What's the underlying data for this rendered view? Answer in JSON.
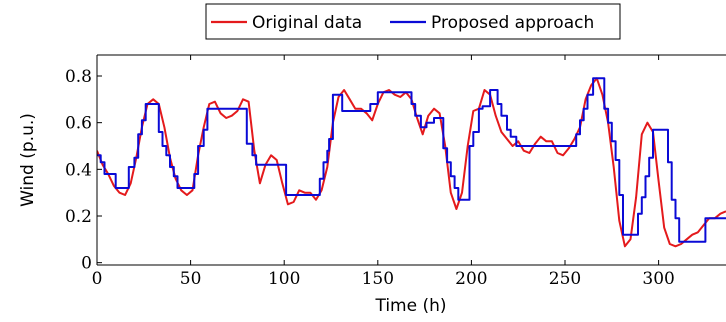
{
  "chart_data": {
    "type": "line",
    "xlabel": "Time (h)",
    "ylabel": "Wind (p.u.)",
    "xlim": [
      0,
      336
    ],
    "ylim": [
      -0.01,
      0.89
    ],
    "xticks": [
      0,
      50,
      100,
      150,
      200,
      250,
      300
    ],
    "yticks": [
      0,
      0.2,
      0.4,
      0.6,
      0.8
    ],
    "xtick_labels": [
      "0",
      "50",
      "100",
      "150",
      "200",
      "250",
      "300"
    ],
    "ytick_labels": [
      "0",
      "0.2",
      "0.4",
      "0.6",
      "0.8"
    ],
    "grid": false,
    "legend_position": "top-center",
    "series": [
      {
        "name": "Original data",
        "color": "#e41a1c",
        "x": [
          0,
          3,
          6,
          9,
          12,
          15,
          18,
          21,
          24,
          27,
          30,
          33,
          36,
          39,
          42,
          45,
          48,
          51,
          54,
          57,
          60,
          63,
          66,
          69,
          72,
          75,
          78,
          81,
          84,
          87,
          90,
          93,
          96,
          99,
          102,
          105,
          108,
          111,
          114,
          117,
          120,
          123,
          126,
          129,
          132,
          135,
          138,
          141,
          144,
          147,
          150,
          153,
          156,
          159,
          162,
          165,
          168,
          171,
          174,
          177,
          180,
          183,
          186,
          189,
          192,
          195,
          198,
          201,
          204,
          207,
          210,
          213,
          216,
          219,
          222,
          225,
          228,
          231,
          234,
          237,
          240,
          243,
          246,
          249,
          252,
          255,
          258,
          261,
          264,
          267,
          270,
          273,
          276,
          279,
          282,
          285,
          288,
          291,
          294,
          297,
          300,
          303,
          306,
          309,
          312,
          315,
          318,
          321,
          324,
          327,
          330,
          333,
          336
        ],
        "y": [
          0.48,
          0.42,
          0.38,
          0.33,
          0.3,
          0.29,
          0.34,
          0.45,
          0.58,
          0.68,
          0.7,
          0.68,
          0.58,
          0.45,
          0.36,
          0.31,
          0.29,
          0.31,
          0.46,
          0.58,
          0.68,
          0.69,
          0.64,
          0.62,
          0.63,
          0.65,
          0.7,
          0.69,
          0.48,
          0.34,
          0.42,
          0.46,
          0.44,
          0.34,
          0.25,
          0.26,
          0.31,
          0.3,
          0.3,
          0.27,
          0.31,
          0.41,
          0.6,
          0.71,
          0.74,
          0.7,
          0.66,
          0.66,
          0.64,
          0.61,
          0.68,
          0.73,
          0.74,
          0.72,
          0.71,
          0.73,
          0.7,
          0.62,
          0.55,
          0.63,
          0.66,
          0.64,
          0.5,
          0.3,
          0.23,
          0.3,
          0.5,
          0.65,
          0.66,
          0.74,
          0.72,
          0.63,
          0.56,
          0.53,
          0.5,
          0.52,
          0.48,
          0.47,
          0.51,
          0.54,
          0.52,
          0.52,
          0.47,
          0.46,
          0.49,
          0.53,
          0.58,
          0.7,
          0.76,
          0.79,
          0.72,
          0.6,
          0.41,
          0.18,
          0.07,
          0.1,
          0.28,
          0.55,
          0.6,
          0.56,
          0.35,
          0.15,
          0.08,
          0.07,
          0.08,
          0.1,
          0.12,
          0.13,
          0.16,
          0.19,
          0.19,
          0.21,
          0.22
        ]
      },
      {
        "name": "Proposed approach",
        "color": "#0a0ad6",
        "x": [
          0,
          2,
          2,
          4,
          4,
          10,
          10,
          17,
          17,
          20,
          20,
          22,
          22,
          24,
          24,
          26,
          26,
          33,
          33,
          35,
          35,
          37,
          37,
          39,
          39,
          41,
          41,
          43,
          43,
          52,
          52,
          54,
          54,
          57,
          57,
          59,
          59,
          80,
          80,
          83,
          83,
          85,
          85,
          101,
          101,
          104,
          104,
          119,
          119,
          121,
          121,
          123,
          123,
          124,
          124,
          126,
          126,
          131,
          131,
          137,
          137,
          146,
          146,
          150,
          150,
          168,
          168,
          170,
          170,
          173,
          173,
          176,
          176,
          180,
          180,
          185,
          185,
          187,
          187,
          189,
          189,
          191,
          191,
          193,
          193,
          199,
          199,
          201,
          201,
          204,
          204,
          206,
          206,
          210,
          210,
          214,
          214,
          216,
          216,
          219,
          219,
          221,
          221,
          224,
          224,
          226,
          226,
          256,
          256,
          258,
          258,
          260,
          260,
          262,
          262,
          265,
          265,
          271,
          271,
          273,
          273,
          275,
          275,
          277,
          277,
          279,
          279,
          281,
          281,
          289,
          289,
          291,
          291,
          293,
          293,
          295,
          295,
          297,
          297,
          305,
          305,
          307,
          307,
          309,
          309,
          311,
          311,
          325,
          325,
          336
        ],
        "y": [
          0.46,
          0.46,
          0.43,
          0.43,
          0.38,
          0.38,
          0.32,
          0.32,
          0.41,
          0.41,
          0.45,
          0.45,
          0.55,
          0.55,
          0.61,
          0.61,
          0.68,
          0.68,
          0.56,
          0.56,
          0.5,
          0.5,
          0.46,
          0.46,
          0.41,
          0.41,
          0.37,
          0.37,
          0.32,
          0.32,
          0.38,
          0.38,
          0.5,
          0.5,
          0.57,
          0.57,
          0.66,
          0.66,
          0.51,
          0.51,
          0.46,
          0.46,
          0.42,
          0.42,
          0.29,
          0.29,
          0.29,
          0.29,
          0.36,
          0.36,
          0.43,
          0.43,
          0.48,
          0.48,
          0.53,
          0.53,
          0.72,
          0.72,
          0.65,
          0.65,
          0.65,
          0.65,
          0.68,
          0.68,
          0.73,
          0.73,
          0.68,
          0.68,
          0.63,
          0.63,
          0.58,
          0.58,
          0.6,
          0.6,
          0.62,
          0.62,
          0.49,
          0.49,
          0.43,
          0.43,
          0.37,
          0.37,
          0.32,
          0.32,
          0.27,
          0.27,
          0.5,
          0.5,
          0.56,
          0.56,
          0.66,
          0.66,
          0.67,
          0.67,
          0.74,
          0.74,
          0.68,
          0.68,
          0.63,
          0.63,
          0.57,
          0.57,
          0.54,
          0.54,
          0.5,
          0.5,
          0.5,
          0.5,
          0.55,
          0.55,
          0.61,
          0.61,
          0.66,
          0.66,
          0.72,
          0.72,
          0.79,
          0.79,
          0.66,
          0.66,
          0.6,
          0.6,
          0.52,
          0.52,
          0.44,
          0.44,
          0.29,
          0.29,
          0.12,
          0.12,
          0.21,
          0.21,
          0.28,
          0.28,
          0.37,
          0.37,
          0.45,
          0.45,
          0.57,
          0.57,
          0.43,
          0.43,
          0.27,
          0.27,
          0.19,
          0.19,
          0.09,
          0.09,
          0.19,
          0.19
        ]
      }
    ]
  }
}
